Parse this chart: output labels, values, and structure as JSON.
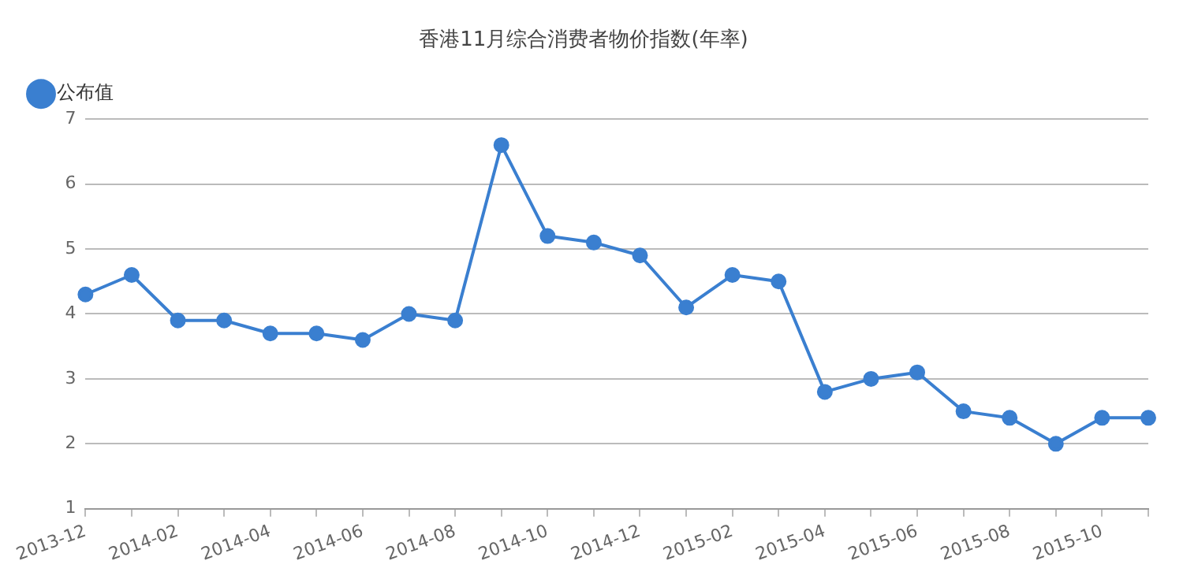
{
  "chart_data": {
    "type": "line",
    "title": "香港11月综合消费者物价指数(年率)",
    "categories": [
      "2013-12",
      null,
      "2014-02",
      null,
      "2014-04",
      null,
      "2014-06",
      null,
      "2014-08",
      null,
      "2014-10",
      null,
      "2014-12",
      null,
      "2015-02",
      null,
      "2015-04",
      null,
      "2015-06",
      null,
      "2015-08",
      null,
      "2015-10",
      null
    ],
    "series": [
      {
        "name": "公布值",
        "color": "#3a7fd0",
        "values": [
          4.3,
          4.6,
          3.9,
          3.9,
          3.7,
          3.7,
          3.6,
          4.0,
          3.9,
          6.6,
          5.2,
          5.1,
          4.9,
          4.1,
          4.6,
          4.5,
          2.8,
          3.0,
          3.1,
          2.5,
          2.4,
          2.0,
          2.4,
          2.4
        ]
      }
    ],
    "ylim": [
      1,
      7
    ],
    "yticks": [
      1,
      2,
      3,
      4,
      5,
      6,
      7
    ],
    "grid": "y",
    "legend": "top left",
    "marker": "circle",
    "line_style": "solid"
  }
}
